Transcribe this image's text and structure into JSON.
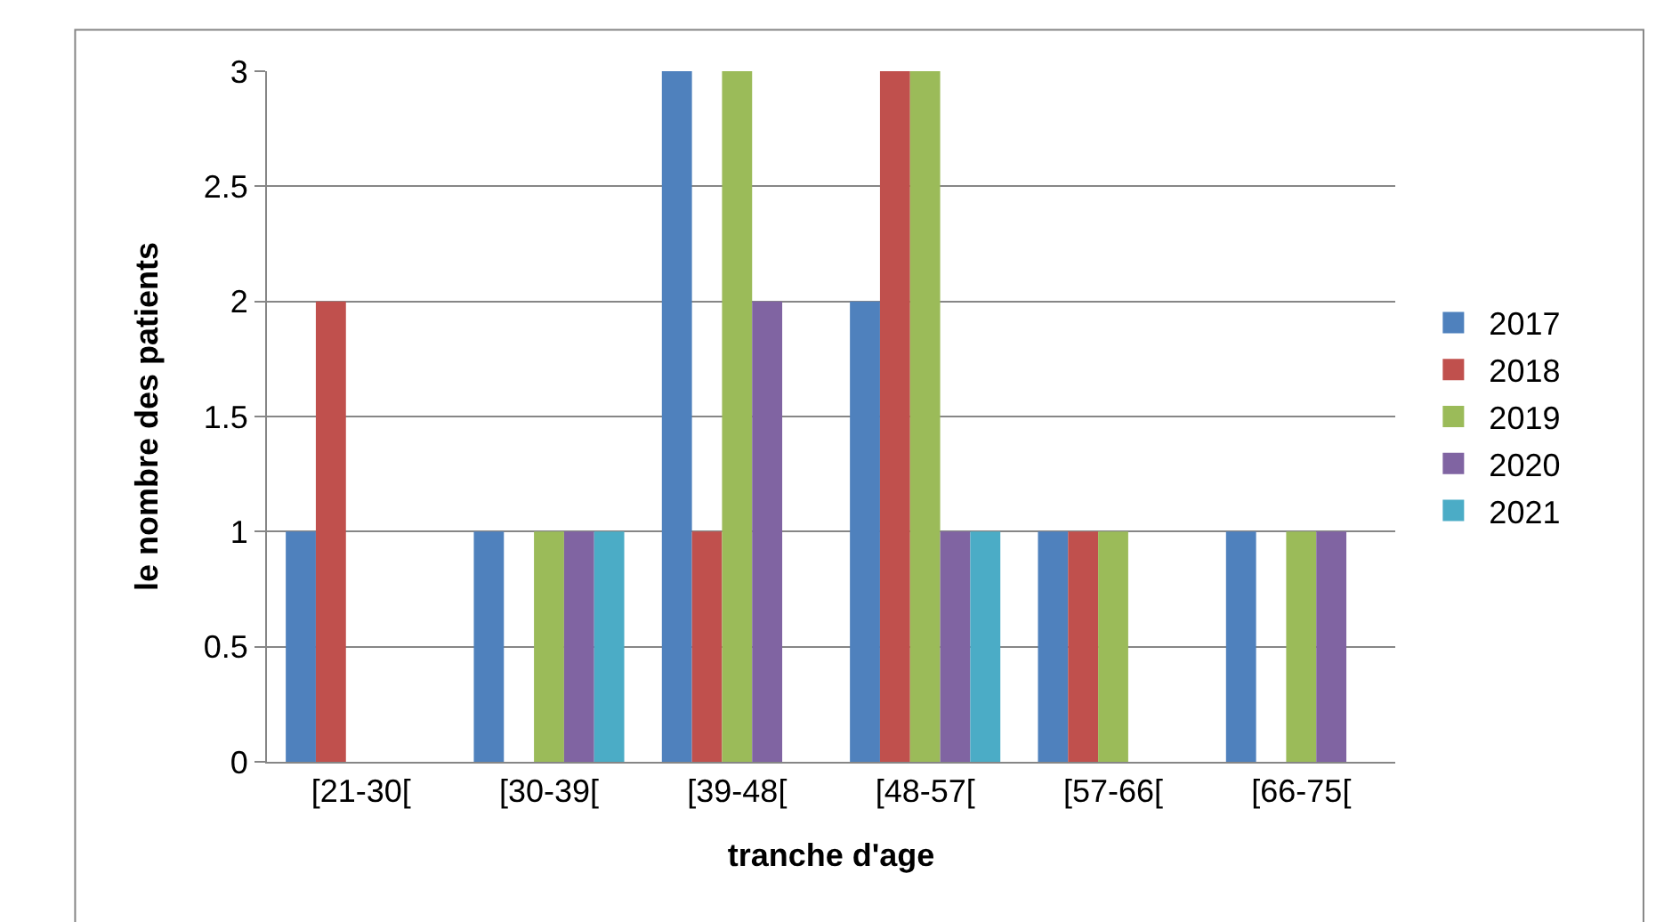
{
  "chart_data": {
    "type": "bar",
    "xlabel": "tranche d'age",
    "ylabel": "le nombre des patients",
    "categories": [
      "[21-30[",
      "[30-39[",
      "[39-48[",
      "[48-57[",
      "[57-66[",
      "[66-75["
    ],
    "series": [
      {
        "name": "2017",
        "color": "#4f81bd",
        "values": [
          1,
          1,
          3,
          2,
          1,
          1
        ]
      },
      {
        "name": "2018",
        "color": "#c0504d",
        "values": [
          2,
          0,
          1,
          3,
          1,
          0
        ]
      },
      {
        "name": "2019",
        "color": "#9bbb59",
        "values": [
          0,
          1,
          3,
          3,
          1,
          1
        ]
      },
      {
        "name": "2020",
        "color": "#8064a2",
        "values": [
          0,
          1,
          2,
          1,
          0,
          1
        ]
      },
      {
        "name": "2021",
        "color": "#4bacc6",
        "values": [
          0,
          1,
          0,
          1,
          0,
          0
        ]
      }
    ],
    "ylim": [
      0,
      3
    ],
    "yticks": [
      0,
      0.5,
      1,
      1.5,
      2,
      2.5,
      3
    ],
    "grid": "y",
    "legend": "right"
  }
}
